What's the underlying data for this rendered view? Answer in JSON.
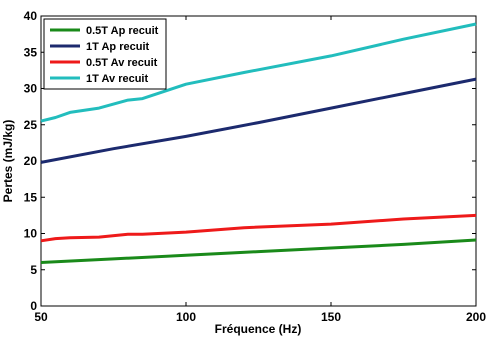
{
  "chart_data": {
    "type": "line",
    "xlabel": "Fréquence (Hz)",
    "ylabel": "Pertes (mJ/kg)",
    "xlim": [
      50,
      200
    ],
    "ylim": [
      0,
      40
    ],
    "xticks": [
      50,
      100,
      150,
      200
    ],
    "yticks": [
      0,
      5,
      10,
      15,
      20,
      25,
      30,
      35,
      40
    ],
    "grid": false,
    "legend_position": "top-left",
    "series": [
      {
        "name": "0.5T Ap recuit",
        "color": "#1a8a1a",
        "x": [
          50,
          75,
          100,
          125,
          150,
          175,
          200
        ],
        "y": [
          6.0,
          6.5,
          7.0,
          7.5,
          8.0,
          8.5,
          9.1
        ]
      },
      {
        "name": "1T Ap recuit",
        "color": "#1c2a6e",
        "x": [
          50,
          75,
          100,
          125,
          150,
          175,
          200
        ],
        "y": [
          19.8,
          21.7,
          23.4,
          25.3,
          27.3,
          29.3,
          31.3
        ]
      },
      {
        "name": "0.5T Av recuit",
        "color": "#ee1a1a",
        "x": [
          50,
          55,
          60,
          70,
          80,
          85,
          100,
          120,
          150,
          175,
          200
        ],
        "y": [
          9.0,
          9.3,
          9.4,
          9.5,
          9.9,
          9.9,
          10.2,
          10.8,
          11.3,
          12.0,
          12.5
        ]
      },
      {
        "name": "1T Av recuit",
        "color": "#22bdbd",
        "x": [
          50,
          55,
          60,
          70,
          80,
          85,
          100,
          120,
          150,
          175,
          200
        ],
        "y": [
          25.5,
          26.0,
          26.7,
          27.3,
          28.4,
          28.6,
          30.6,
          32.2,
          34.5,
          36.8,
          38.9
        ]
      }
    ]
  }
}
